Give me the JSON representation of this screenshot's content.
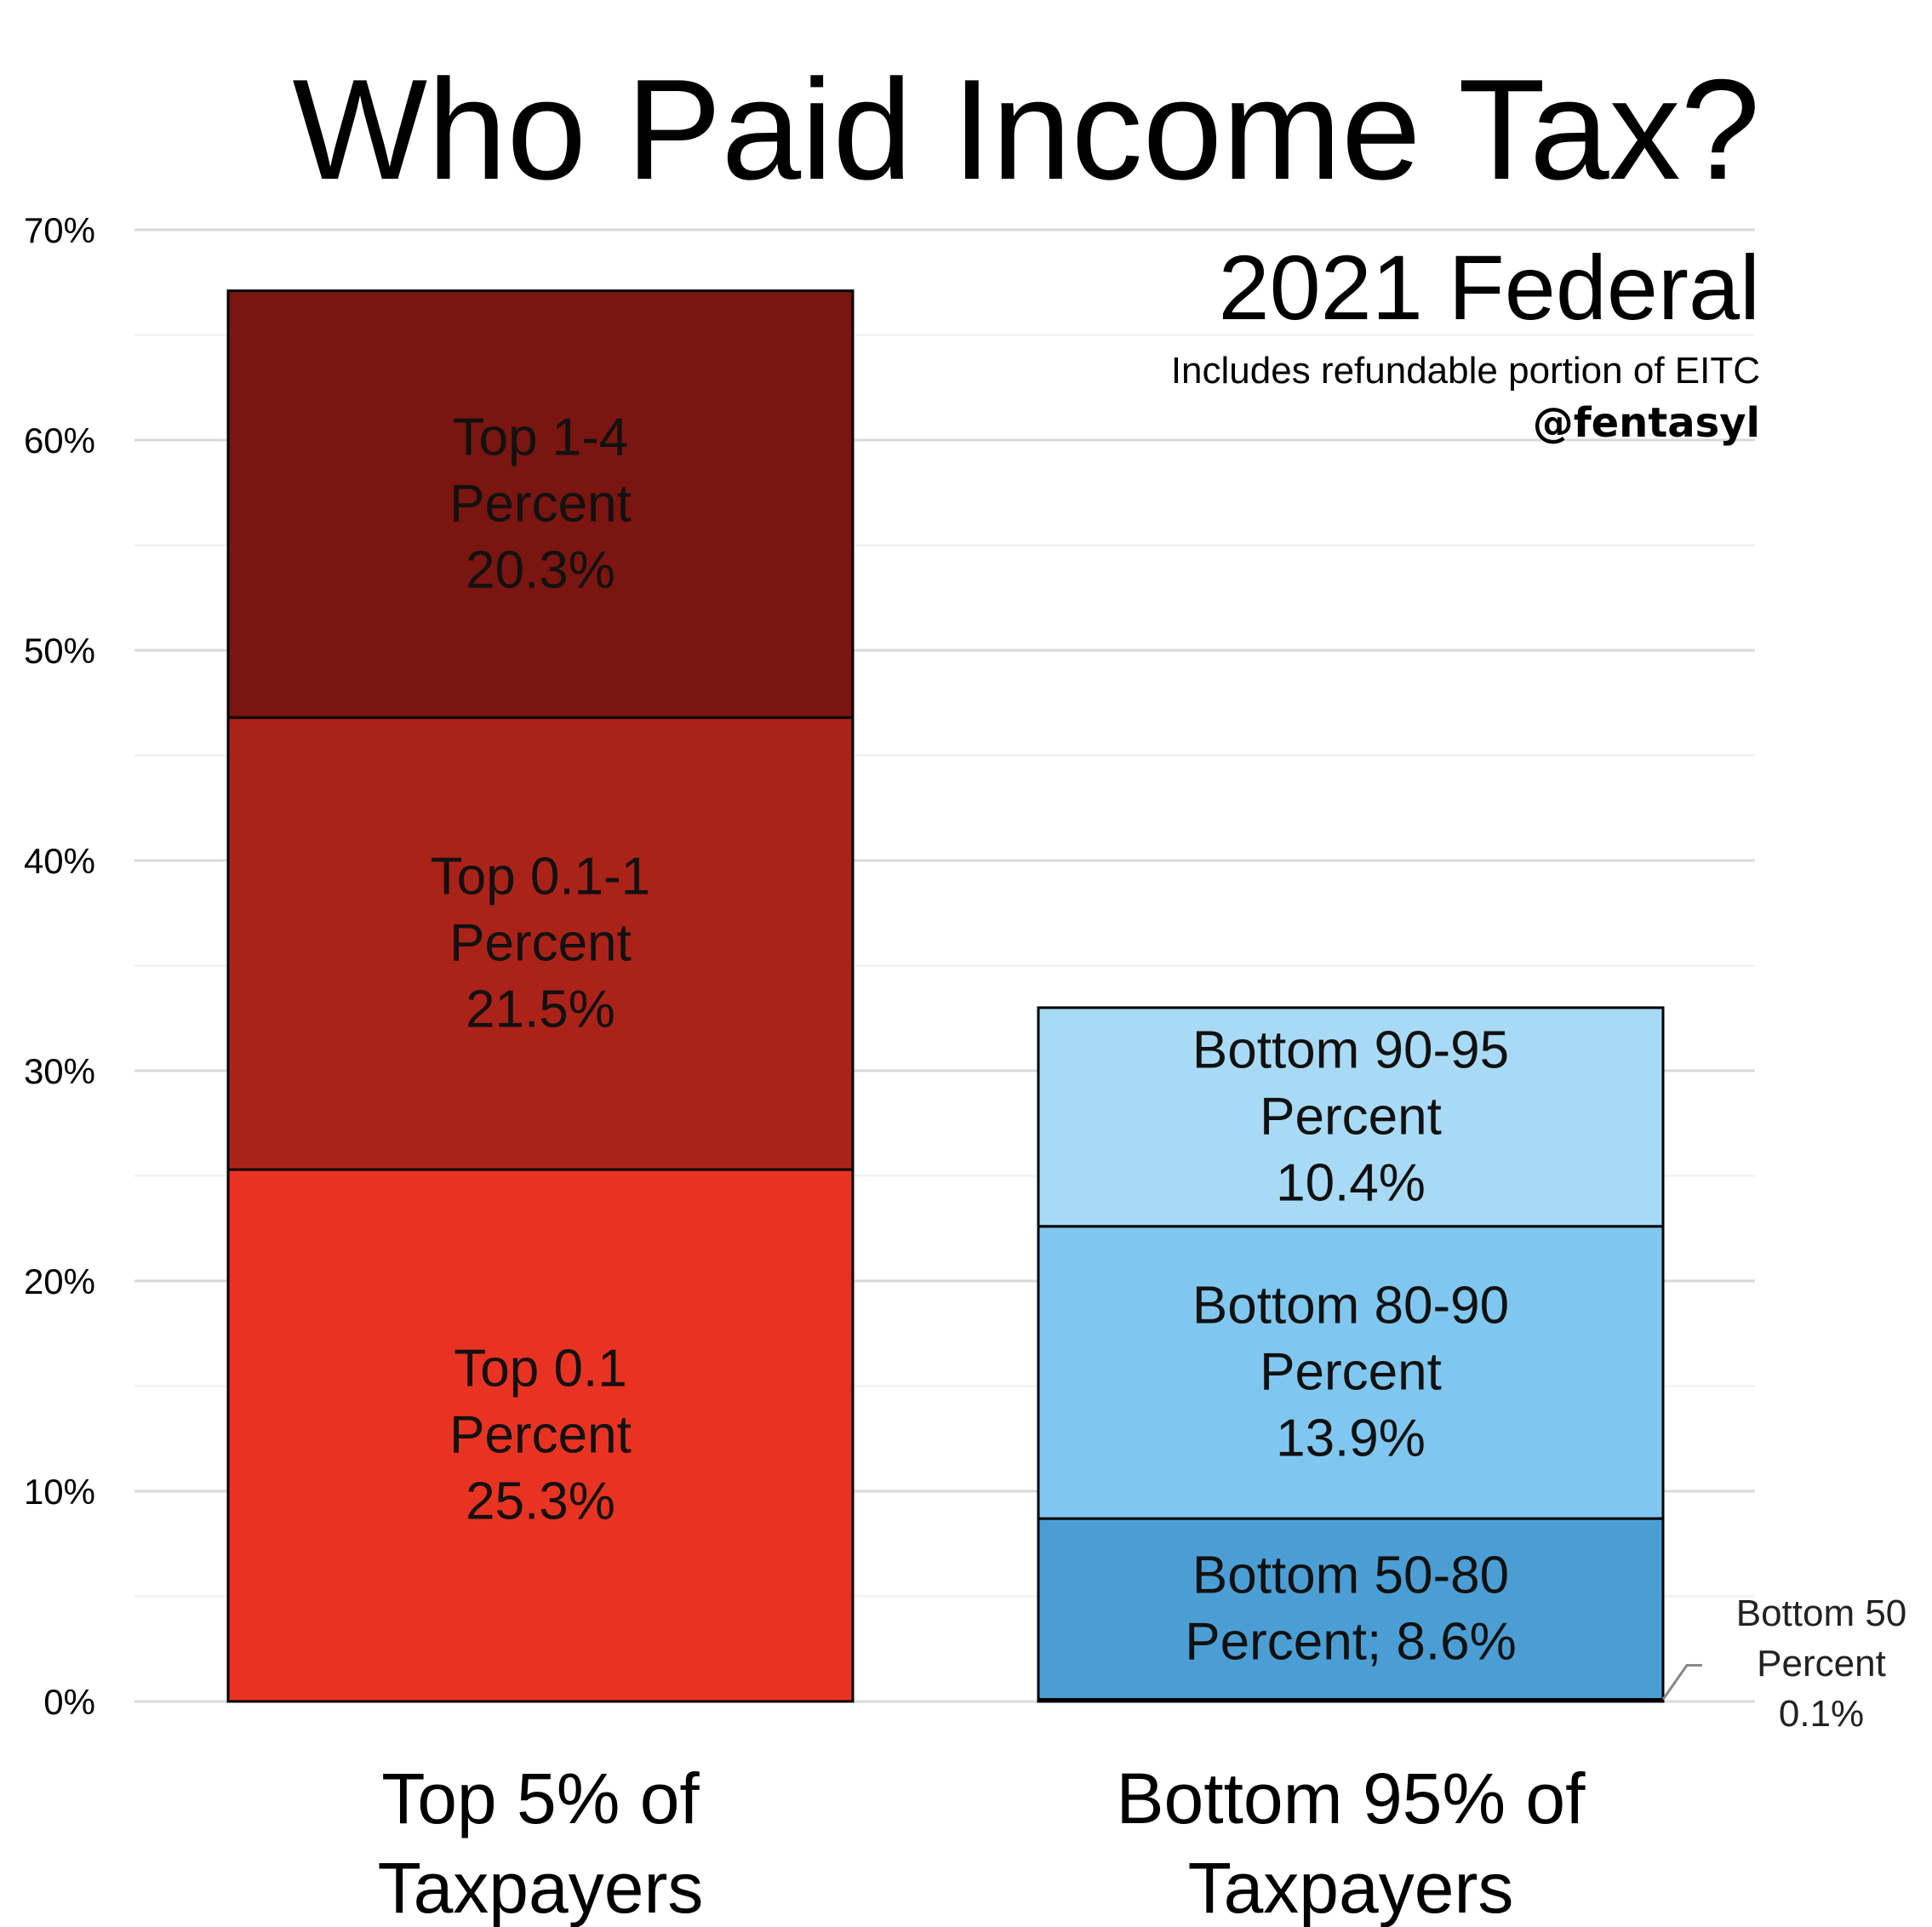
{
  "chart_data": {
    "type": "bar",
    "stacked": true,
    "title": "Who Paid Income Tax?",
    "subtitle": "2021 Federal",
    "note": "Includes refundable portion of EITC",
    "credit": "@fentasyl",
    "ylim": [
      0,
      70
    ],
    "yticks": [
      "0%",
      "10%",
      "20%",
      "30%",
      "40%",
      "50%",
      "60%",
      "70%"
    ],
    "ytick_values": [
      0,
      10,
      20,
      30,
      40,
      50,
      60,
      70
    ],
    "grid": true,
    "categories": [
      {
        "line1": "Top 5% of",
        "line2": "Taxpayers"
      },
      {
        "line1": "Bottom 95% of",
        "line2": "Taxpayers"
      }
    ],
    "segments": [
      {
        "category_index": 0,
        "value": 25.3,
        "label_lines": [
          "Top 0.1",
          "Percent",
          "25.3%"
        ],
        "color": "#e83323"
      },
      {
        "category_index": 0,
        "value": 21.5,
        "label_lines": [
          "Top 0.1-1",
          "Percent",
          "21.5%"
        ],
        "color": "#ab2219"
      },
      {
        "category_index": 0,
        "value": 20.3,
        "label_lines": [
          "Top 1-4",
          "Percent",
          "20.3%"
        ],
        "color": "#7a150f"
      },
      {
        "category_index": 1,
        "value": 0.1,
        "label_lines": [],
        "color": "#2c7fbe"
      },
      {
        "category_index": 1,
        "value": 8.6,
        "label_lines": [
          "Bottom 50-80",
          "Percent; 8.6%"
        ],
        "color": "#4b9ed4"
      },
      {
        "category_index": 1,
        "value": 13.9,
        "label_lines": [
          "Bottom 80-90",
          "Percent",
          "13.9%"
        ],
        "color": "#80c7ef"
      },
      {
        "category_index": 1,
        "value": 10.4,
        "label_lines": [
          "Bottom 90-95",
          "Percent",
          "10.4%"
        ],
        "color": "#a9daf5"
      }
    ],
    "callout": {
      "segment_index": 3,
      "label_lines": [
        "Bottom 50",
        "Percent",
        "0.1%"
      ]
    }
  }
}
